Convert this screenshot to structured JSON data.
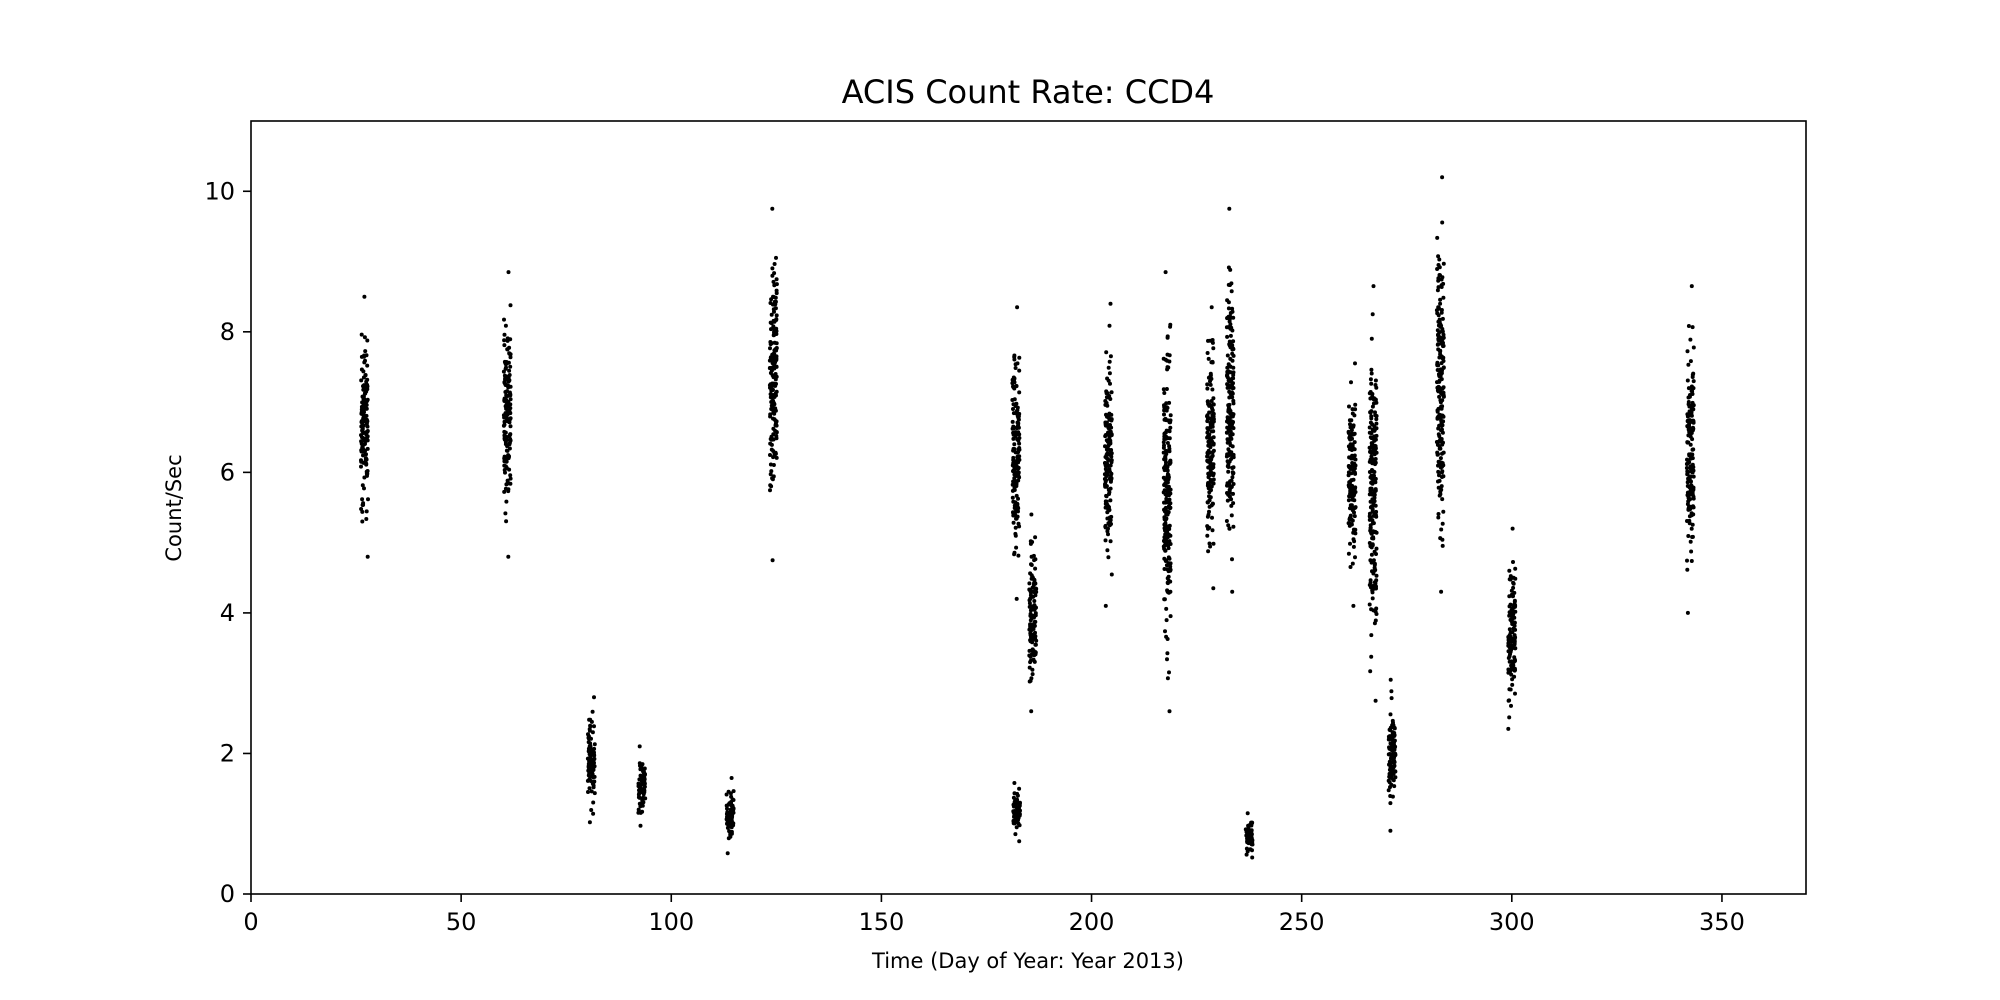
{
  "chart_data": {
    "type": "scatter",
    "title": "ACIS Count Rate: CCD4",
    "xlabel": "Time (Day of Year: Year 2013)",
    "ylabel": "Count/Sec",
    "xlim": [
      0,
      370
    ],
    "ylim": [
      0,
      11
    ],
    "xticks": [
      0,
      50,
      100,
      150,
      200,
      250,
      300,
      350
    ],
    "yticks": [
      0,
      2,
      4,
      6,
      8,
      10
    ],
    "grid": false,
    "marker_color": "#000000",
    "clusters": [
      {
        "day": 27.0,
        "min": 4.8,
        "max": 8.5
      },
      {
        "day": 61.0,
        "min": 4.8,
        "max": 8.85
      },
      {
        "day": 81.0,
        "min": 1.02,
        "max": 2.8
      },
      {
        "day": 93.0,
        "min": 0.97,
        "max": 2.1
      },
      {
        "day": 114.0,
        "min": 0.58,
        "max": 1.65
      },
      {
        "day": 124.3,
        "min": 4.75,
        "max": 9.75
      },
      {
        "day": 182.0,
        "min": 4.2,
        "max": 8.35
      },
      {
        "day": 182.2,
        "min": 0.75,
        "max": 1.58
      },
      {
        "day": 186.0,
        "min": 2.6,
        "max": 5.4
      },
      {
        "day": 204.0,
        "min": 4.1,
        "max": 8.4
      },
      {
        "day": 218.0,
        "min": 2.6,
        "max": 8.85
      },
      {
        "day": 228.3,
        "min": 4.35,
        "max": 8.35
      },
      {
        "day": 233.0,
        "min": 4.3,
        "max": 9.75
      },
      {
        "day": 237.5,
        "min": 0.52,
        "max": 1.15
      },
      {
        "day": 262.0,
        "min": 4.1,
        "max": 7.55
      },
      {
        "day": 267.0,
        "min": 2.75,
        "max": 8.65
      },
      {
        "day": 271.5,
        "min": 0.9,
        "max": 3.05
      },
      {
        "day": 283.0,
        "min": 4.3,
        "max": 10.2
      },
      {
        "day": 300.0,
        "min": 2.35,
        "max": 5.2
      },
      {
        "day": 342.5,
        "min": 4.0,
        "max": 8.65
      }
    ]
  }
}
